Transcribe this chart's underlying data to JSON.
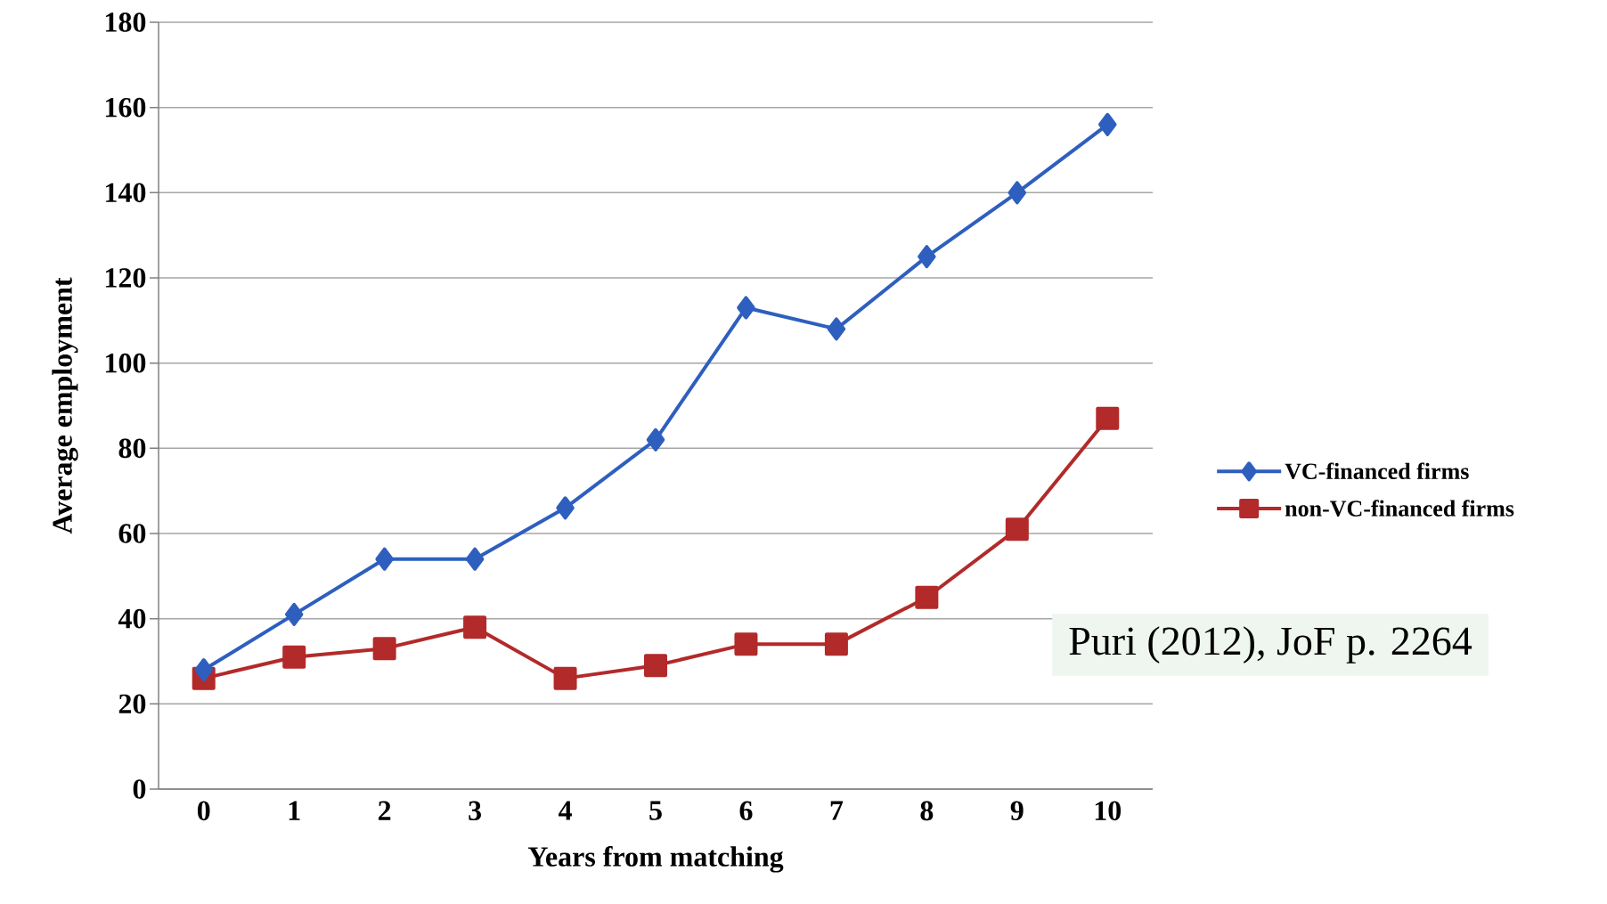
{
  "chart_data": {
    "type": "line",
    "xlabel": "Years from matching",
    "ylabel": "Average employment",
    "categories": [
      "0",
      "1",
      "2",
      "3",
      "4",
      "5",
      "6",
      "7",
      "8",
      "9",
      "10"
    ],
    "series": [
      {
        "name": "VC-financed firms",
        "color": "#2e5fbf",
        "marker": "diamond",
        "values": [
          28,
          41,
          54,
          54,
          66,
          82,
          113,
          108,
          125,
          140,
          156
        ]
      },
      {
        "name": "non-VC-financed firms",
        "color": "#b22a2a",
        "marker": "square",
        "values": [
          26,
          31,
          33,
          38,
          26,
          29,
          34,
          34,
          45,
          61,
          87
        ]
      }
    ],
    "ylim": [
      0,
      180
    ],
    "yticks": [
      0,
      20,
      40,
      60,
      80,
      100,
      120,
      140,
      160,
      180
    ],
    "grid": "y",
    "legend": "right",
    "line_style": "solid",
    "annotations": [
      "Puri (2012), JoF p. 2264"
    ]
  }
}
